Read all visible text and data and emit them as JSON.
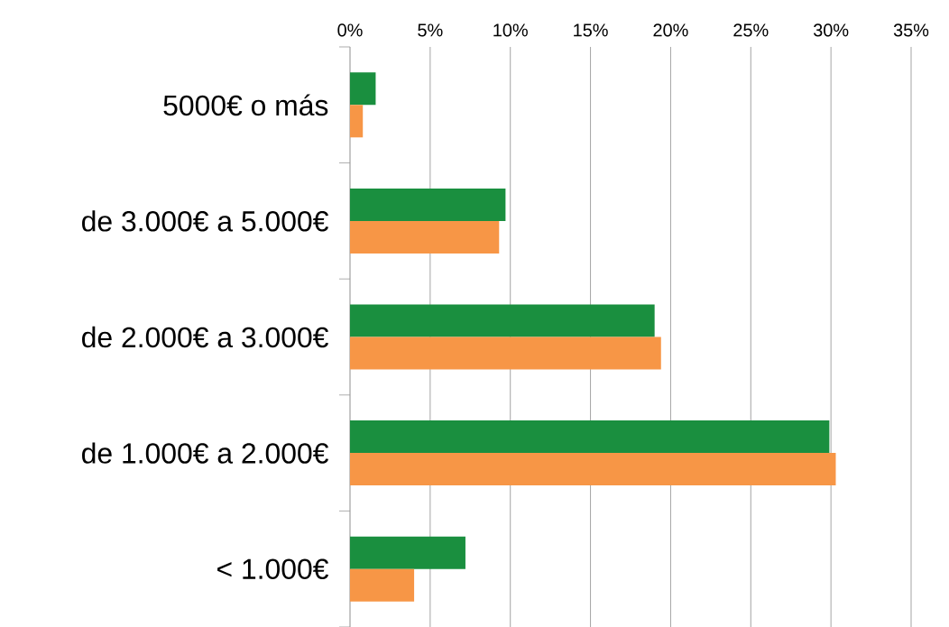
{
  "chart_data": {
    "type": "bar",
    "orientation": "horizontal",
    "categories": [
      "5000€ o más",
      "de 3.000€ a 5.000€",
      "de 2.000€ a 3.000€",
      "de 1.000€ a 2.000€",
      "< 1.000€"
    ],
    "series": [
      {
        "color": "#1a8f3f",
        "values": [
          1.6,
          9.7,
          19.0,
          29.9,
          7.2
        ]
      },
      {
        "color": "#f79646",
        "values": [
          0.8,
          9.3,
          19.4,
          30.3,
          4.0
        ]
      }
    ],
    "xlim": [
      0,
      35
    ],
    "xticks": [
      {
        "value": 0,
        "label": "0%"
      },
      {
        "value": 5,
        "label": "5%"
      },
      {
        "value": 10,
        "label": "10%"
      },
      {
        "value": 15,
        "label": "15%"
      },
      {
        "value": 20,
        "label": "20%"
      },
      {
        "value": 25,
        "label": "25%"
      },
      {
        "value": 30,
        "label": "30%"
      },
      {
        "value": 35,
        "label": "35%"
      }
    ],
    "grid": "x"
  }
}
